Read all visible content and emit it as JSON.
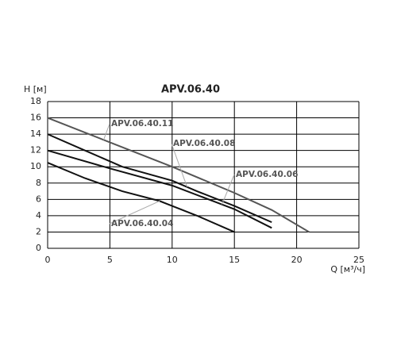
{
  "chart_data": {
    "type": "line",
    "title": "APV.06.40",
    "y_label": "H [м]",
    "x_label": "Q [м³/ч]",
    "xlim": [
      0,
      25
    ],
    "xticks": [
      0,
      5,
      10,
      15,
      20,
      25
    ],
    "ylim": [
      0,
      18
    ],
    "yticks": [
      0,
      2,
      4,
      6,
      8,
      10,
      12,
      14,
      16,
      18
    ],
    "grid": true,
    "series": [
      {
        "name": "APV.06.40.11",
        "color": "#555555",
        "x": [
          0,
          5,
          10,
          15,
          18,
          21
        ],
        "values": [
          16,
          13,
          10,
          6.8,
          4.7,
          2
        ]
      },
      {
        "name": "APV.06.40.08",
        "color": "#111111",
        "x": [
          0,
          3,
          6,
          10,
          12,
          15,
          18
        ],
        "values": [
          14,
          12,
          10,
          8.3,
          7,
          5.2,
          3.2
        ]
      },
      {
        "name": "APV.06.40.06",
        "color": "#111111",
        "x": [
          0,
          5,
          10,
          15,
          18
        ],
        "values": [
          12,
          9.8,
          7.7,
          4.8,
          2.5
        ]
      },
      {
        "name": "APV.06.40.04",
        "color": "#111111",
        "x": [
          0,
          3,
          6,
          9,
          12,
          15
        ],
        "values": [
          10.5,
          8.6,
          7,
          5.8,
          4,
          2
        ]
      }
    ]
  }
}
